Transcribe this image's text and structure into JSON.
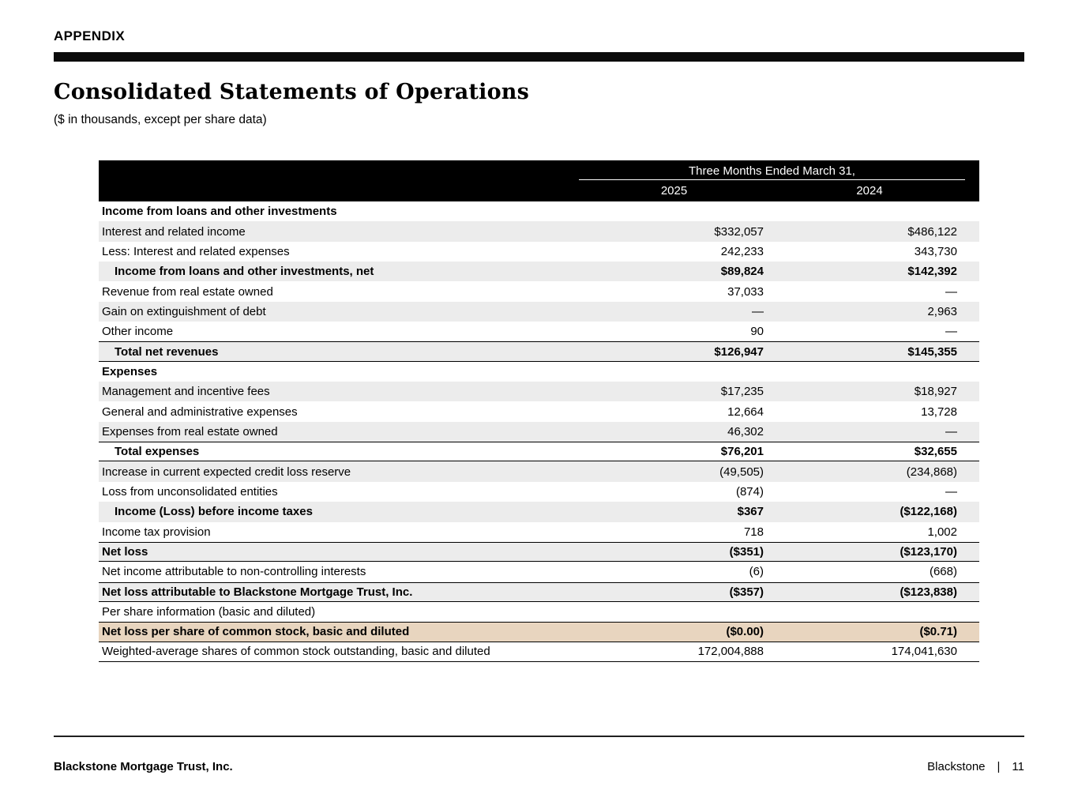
{
  "page": {
    "appendix_label": "APPENDIX",
    "title": "Consolidated Statements of Operations",
    "subtitle": "($ in thousands, except per share data)",
    "footer_left": "Blackstone Mortgage Trust, Inc.",
    "footer_brand": "Blackstone",
    "footer_separator": "|",
    "footer_page_number": "11"
  },
  "colors": {
    "stripe_gray": "#ececec",
    "highlight_tan": "#e8d5bf",
    "header_black": "#000000"
  },
  "table": {
    "header": {
      "period_label": "Three Months Ended March 31,",
      "col_2025": "2025",
      "col_2024": "2024"
    },
    "rows": [
      {
        "label": "Income from loans and other investments",
        "v2025": "",
        "v2024": "",
        "bold": true,
        "indent": false,
        "bg": "white",
        "bt": false,
        "bb": false
      },
      {
        "label": "Interest and related income",
        "v2025": "$332,057",
        "v2024": "$486,122",
        "bold": false,
        "indent": false,
        "bg": "gray",
        "bt": false,
        "bb": false
      },
      {
        "label": "Less: Interest and related expenses",
        "v2025": "242,233",
        "v2024": "343,730",
        "bold": false,
        "indent": false,
        "bg": "white",
        "bt": false,
        "bb": false
      },
      {
        "label": "Income from loans and other investments, net",
        "v2025": "$89,824",
        "v2024": "$142,392",
        "bold": true,
        "indent": true,
        "bg": "gray",
        "bt": false,
        "bb": false
      },
      {
        "label": "Revenue from real estate owned",
        "v2025": "37,033",
        "v2024": "—",
        "bold": false,
        "indent": false,
        "bg": "white",
        "bt": false,
        "bb": false
      },
      {
        "label": "Gain on extinguishment of debt",
        "v2025": "—",
        "v2024": "2,963",
        "bold": false,
        "indent": false,
        "bg": "gray",
        "bt": false,
        "bb": false
      },
      {
        "label": "Other income",
        "v2025": "90",
        "v2024": "—",
        "bold": false,
        "indent": false,
        "bg": "white",
        "bt": false,
        "bb": false
      },
      {
        "label": "Total net revenues",
        "v2025": "$126,947",
        "v2024": "$145,355",
        "bold": true,
        "indent": true,
        "bg": "gray",
        "bt": true,
        "bb": true
      },
      {
        "label": "Expenses",
        "v2025": "",
        "v2024": "",
        "bold": true,
        "indent": false,
        "bg": "white",
        "bt": false,
        "bb": false
      },
      {
        "label": "Management and incentive fees",
        "v2025": "$17,235",
        "v2024": "$18,927",
        "bold": false,
        "indent": false,
        "bg": "gray",
        "bt": false,
        "bb": false
      },
      {
        "label": "General and administrative expenses",
        "v2025": "12,664",
        "v2024": "13,728",
        "bold": false,
        "indent": false,
        "bg": "white",
        "bt": false,
        "bb": false
      },
      {
        "label": "Expenses from real estate owned",
        "v2025": "46,302",
        "v2024": "—",
        "bold": false,
        "indent": false,
        "bg": "gray",
        "bt": false,
        "bb": false
      },
      {
        "label": "Total expenses",
        "v2025": "$76,201",
        "v2024": "$32,655",
        "bold": true,
        "indent": true,
        "bg": "white",
        "bt": true,
        "bb": true
      },
      {
        "label": "Increase in current expected credit loss reserve",
        "v2025": "(49,505)",
        "v2024": "(234,868)",
        "bold": false,
        "indent": false,
        "bg": "gray",
        "bt": false,
        "bb": false
      },
      {
        "label": "Loss from unconsolidated entities",
        "v2025": "(874)",
        "v2024": "—",
        "bold": false,
        "indent": false,
        "bg": "white",
        "bt": false,
        "bb": false
      },
      {
        "label": "Income (Loss) before income taxes",
        "v2025": "$367",
        "v2024": "($122,168)",
        "bold": true,
        "indent": true,
        "bg": "gray",
        "bt": false,
        "bb": false
      },
      {
        "label": "Income tax provision",
        "v2025": "718",
        "v2024": "1,002",
        "bold": false,
        "indent": false,
        "bg": "white",
        "bt": false,
        "bb": false
      },
      {
        "label": "Net loss",
        "v2025": "($351)",
        "v2024": "($123,170)",
        "bold": true,
        "indent": false,
        "bg": "gray",
        "bt": true,
        "bb": true
      },
      {
        "label": "Net income attributable to non-controlling interests",
        "v2025": "(6)",
        "v2024": "(668)",
        "bold": false,
        "indent": false,
        "bg": "white",
        "bt": false,
        "bb": false
      },
      {
        "label": "Net loss attributable to Blackstone Mortgage Trust, Inc.",
        "v2025": "($357)",
        "v2024": "($123,838)",
        "bold": true,
        "indent": false,
        "bg": "gray",
        "bt": true,
        "bb": true
      },
      {
        "label": "Per share information (basic and diluted)",
        "v2025": "",
        "v2024": "",
        "bold": false,
        "indent": false,
        "bg": "white",
        "bt": false,
        "bb": false
      },
      {
        "label": "Net loss per share of common stock, basic and diluted",
        "v2025": "($0.00)",
        "v2024": "($0.71)",
        "bold": true,
        "indent": false,
        "bg": "tan",
        "bt": true,
        "bb": true
      },
      {
        "label": "Weighted-average shares of common stock outstanding, basic and diluted",
        "v2025": "172,004,888",
        "v2024": "174,041,630",
        "bold": false,
        "indent": false,
        "bg": "white",
        "bt": false,
        "bb": true
      }
    ]
  }
}
